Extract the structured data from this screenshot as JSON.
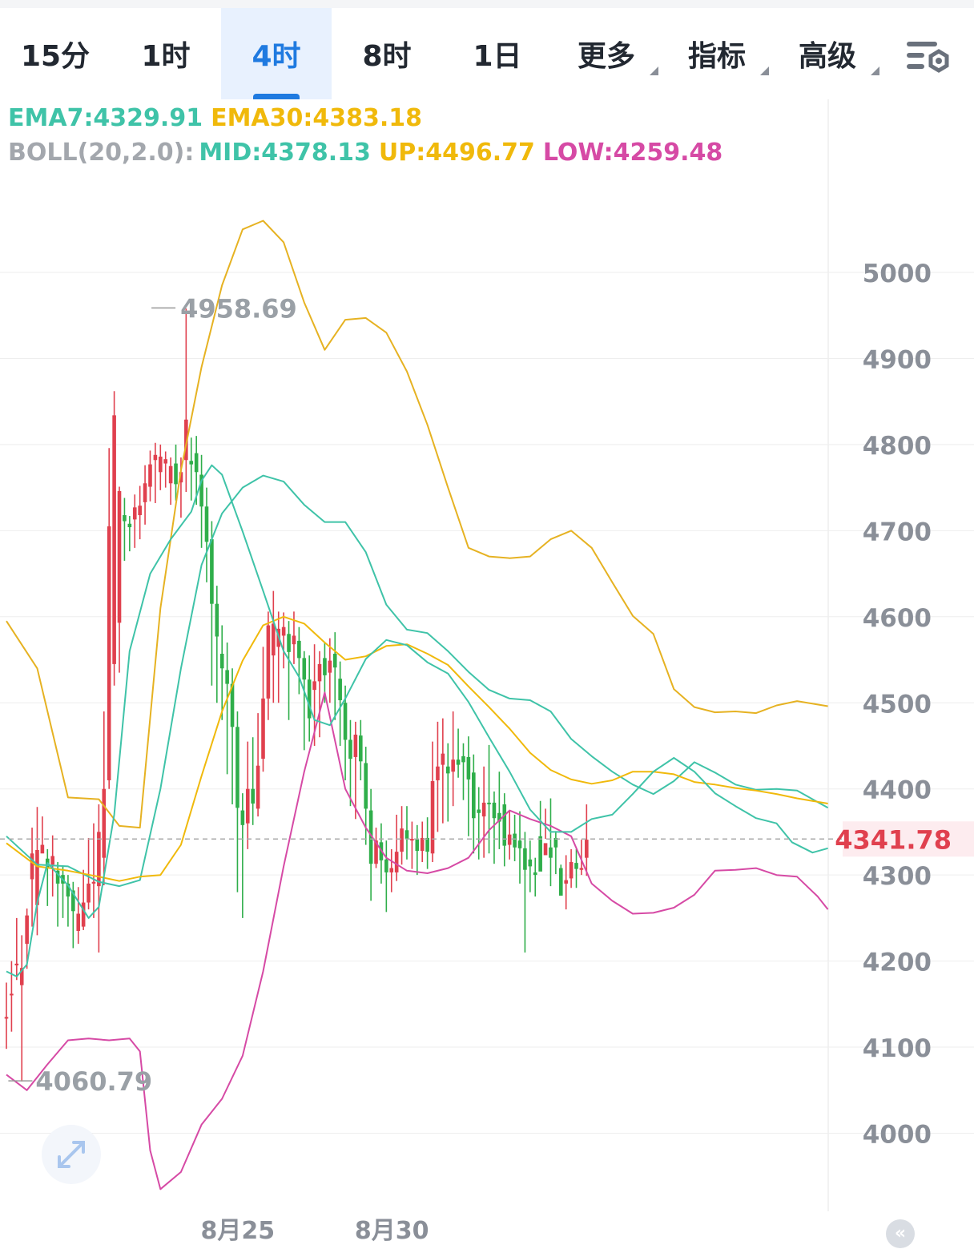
{
  "tabs": [
    {
      "label": "15分",
      "active": false
    },
    {
      "label": "1时",
      "active": false
    },
    {
      "label": "4时",
      "active": true
    },
    {
      "label": "8时",
      "active": false
    },
    {
      "label": "1日",
      "active": false
    },
    {
      "label": "更多",
      "active": false,
      "dropdown": true
    },
    {
      "label": "指标",
      "active": false,
      "dropdown": true
    },
    {
      "label": "高级",
      "active": false,
      "dropdown": true
    }
  ],
  "icons": {
    "settings": "settings-sliders-icon",
    "expand": "expand-diagonal-icon",
    "back": "back-to-latest-icon"
  },
  "legend": {
    "ema7": "EMA7:4329.91",
    "ema30": "EMA30:4383.18",
    "boll": "BOLL(20,2.0):",
    "mid": "MID:4378.13",
    "up": "UP:4496.77",
    "low": "LOW:4259.48"
  },
  "colors": {
    "up_candle": "#e0404e",
    "down_candle": "#2fae4a",
    "ema7": "#3fc3a8",
    "ema30": "#f0b90b",
    "boll_up": "#e6b222",
    "boll_low": "#d64aa5",
    "boll_mid": "#3fc3a8",
    "price_tag": "#e0404e",
    "axis_text": "#8a8f98",
    "grid": "#eeeeee"
  },
  "chart_data": {
    "type": "candlestick",
    "interval": "4时",
    "y_axis": {
      "ticks": [
        4000,
        4100,
        4200,
        4300,
        4400,
        4500,
        4600,
        4700,
        4800,
        4900,
        5000
      ],
      "range": [
        3930,
        5100
      ]
    },
    "x_axis": {
      "labels": [
        {
          "text": "8月25",
          "index": 46
        },
        {
          "text": "8月30",
          "index": 76
        }
      ]
    },
    "current_price": "4341.78",
    "marked_high": {
      "label": "4958.69",
      "index": 27
    },
    "marked_low": {
      "label": "4060.79",
      "index": 1
    },
    "candles": [
      [
        4135,
        4135,
        4175,
        4098
      ],
      [
        4162,
        4162,
        4200,
        4118
      ],
      [
        4195,
        4197,
        4250,
        4178
      ],
      [
        4172,
        4192,
        4230,
        4060
      ],
      [
        4220,
        4253,
        4261,
        4191
      ],
      [
        4295,
        4325,
        4355,
        4240
      ],
      [
        4265,
        4329,
        4379,
        4230
      ],
      [
        4325,
        4335,
        4368,
        4328
      ],
      [
        4319,
        4308,
        4330,
        4264
      ],
      [
        4312,
        4322,
        4346,
        4275
      ],
      [
        4305,
        4290,
        4315,
        4240
      ],
      [
        4300,
        4290,
        4310,
        4250
      ],
      [
        4290,
        4275,
        4300,
        4240
      ],
      [
        4282,
        4258,
        4292,
        4215
      ],
      [
        4235,
        4255,
        4286,
        4220
      ],
      [
        4240,
        4268,
        4306,
        4236
      ],
      [
        4268,
        4290,
        4343,
        4260
      ],
      [
        4290,
        4292,
        4360,
        4250
      ],
      [
        4287,
        4350,
        4382,
        4210
      ],
      [
        4320,
        4400,
        4490,
        4288
      ],
      [
        4410,
        4705,
        4796,
        4400
      ],
      [
        4545,
        4834,
        4862,
        4520
      ],
      [
        4593,
        4746,
        4751,
        4535
      ],
      [
        4718,
        4711,
        4738,
        4665
      ],
      [
        4708,
        4704,
        4717,
        4676
      ],
      [
        4713,
        4727,
        4742,
        4680
      ],
      [
        4718,
        4729,
        4752,
        4690
      ],
      [
        4733,
        4755,
        4776,
        4707
      ],
      [
        4751,
        4777,
        4793,
        4734
      ],
      [
        4782,
        4788,
        4802,
        4732
      ],
      [
        4768,
        4786,
        4800,
        4747
      ],
      [
        4778,
        4783,
        4792,
        4750
      ],
      [
        4755,
        4775,
        4785,
        4730
      ],
      [
        4778,
        4754,
        4800,
        4735
      ],
      [
        4756,
        4768,
        4785,
        4715
      ],
      [
        4782,
        4829,
        4958,
        4745
      ],
      [
        4781,
        4777,
        4808,
        4735
      ],
      [
        4790,
        4768,
        4810,
        4730
      ],
      [
        4765,
        4728,
        4788,
        4680
      ],
      [
        4728,
        4687,
        4750,
        4640
      ],
      [
        4690,
        4615,
        4711,
        4520
      ],
      [
        4615,
        4577,
        4636,
        4500
      ],
      [
        4557,
        4540,
        4590,
        4480
      ],
      [
        4538,
        4522,
        4570,
        4417
      ],
      [
        4522,
        4472,
        4540,
        4382
      ],
      [
        4472,
        4378,
        4490,
        4280
      ],
      [
        4375,
        4358,
        4395,
        4250
      ],
      [
        4360,
        4400,
        4455,
        4330
      ],
      [
        4400,
        4383,
        4460,
        4358
      ],
      [
        4377,
        4427,
        4488,
        4368
      ],
      [
        4435,
        4505,
        4565,
        4420
      ],
      [
        4505,
        4590,
        4606,
        4480
      ],
      [
        4555,
        4592,
        4630,
        4500
      ],
      [
        4565,
        4586,
        4606,
        4500
      ],
      [
        4578,
        4588,
        4605,
        4540
      ],
      [
        4580,
        4559,
        4595,
        4480
      ],
      [
        4568,
        4578,
        4606,
        4545
      ],
      [
        4572,
        4552,
        4588,
        4510
      ],
      [
        4552,
        4527,
        4560,
        4445
      ],
      [
        4527,
        4482,
        4555,
        4455
      ],
      [
        4515,
        4525,
        4568,
        4450
      ],
      [
        4525,
        4545,
        4560,
        4460
      ],
      [
        4552,
        4532,
        4570,
        4500
      ],
      [
        4535,
        4549,
        4575,
        4500
      ],
      [
        4557,
        4541,
        4582,
        4480
      ],
      [
        4528,
        4503,
        4548,
        4450
      ],
      [
        4500,
        4457,
        4520,
        4410
      ],
      [
        4457,
        4435,
        4480,
        4380
      ],
      [
        4437,
        4463,
        4478,
        4365
      ],
      [
        4462,
        4432,
        4480,
        4410
      ],
      [
        4430,
        4377,
        4449,
        4335
      ],
      [
        4375,
        4313,
        4400,
        4270
      ],
      [
        4313,
        4340,
        4355,
        4308
      ],
      [
        4338,
        4317,
        4360,
        4290
      ],
      [
        4318,
        4303,
        4340,
        4257
      ],
      [
        4303,
        4308,
        4330,
        4280
      ],
      [
        4303,
        4327,
        4370,
        4293
      ],
      [
        4327,
        4354,
        4380,
        4312
      ],
      [
        4352,
        4342,
        4380,
        4318
      ],
      [
        4340,
        4342,
        4362,
        4307
      ],
      [
        4342,
        4328,
        4358,
        4300
      ],
      [
        4328,
        4343,
        4362,
        4315
      ],
      [
        4343,
        4327,
        4367,
        4307
      ],
      [
        4325,
        4409,
        4455,
        4315
      ],
      [
        4410,
        4426,
        4478,
        4350
      ],
      [
        4428,
        4441,
        4482,
        4360
      ],
      [
        4426,
        4418,
        4453,
        4362
      ],
      [
        4420,
        4434,
        4490,
        4380
      ],
      [
        4434,
        4428,
        4470,
        4413
      ],
      [
        4438,
        4431,
        4453,
        4387
      ],
      [
        4437,
        4411,
        4461,
        4345
      ],
      [
        4419,
        4366,
        4440,
        4325
      ],
      [
        4376,
        4372,
        4402,
        4318
      ],
      [
        4368,
        4384,
        4426,
        4320
      ],
      [
        4384,
        4383,
        4451,
        4325
      ],
      [
        4384,
        4366,
        4397,
        4313
      ],
      [
        4372,
        4362,
        4420,
        4330
      ],
      [
        4382,
        4334,
        4395,
        4310
      ],
      [
        4335,
        4347,
        4375,
        4318
      ],
      [
        4348,
        4332,
        4370,
        4316
      ],
      [
        4340,
        4331,
        4374,
        4290
      ],
      [
        4331,
        4306,
        4350,
        4210
      ],
      [
        4318,
        4310,
        4340,
        4280
      ],
      [
        4303,
        4300,
        4320,
        4275
      ],
      [
        4345,
        4304,
        4386,
        4325
      ],
      [
        4323,
        4337,
        4377,
        4342
      ],
      [
        4332,
        4320,
        4389,
        4287
      ],
      [
        4343,
        4332,
        4351,
        4301
      ],
      [
        4308,
        4276,
        4312,
        4279
      ],
      [
        4290,
        4294,
        4323,
        4260
      ],
      [
        4296,
        4315,
        4330,
        4285
      ],
      [
        4314,
        4307,
        4330,
        4285
      ],
      [
        4306,
        4308,
        4341,
        4300
      ],
      [
        4320,
        4341,
        4382,
        4299
      ]
    ],
    "ema7": [
      [
        0,
        4188
      ],
      [
        2,
        4182
      ],
      [
        4,
        4196
      ],
      [
        6,
        4268
      ],
      [
        8,
        4314
      ],
      [
        12,
        4288
      ],
      [
        16,
        4250
      ],
      [
        18,
        4263
      ],
      [
        21,
        4370
      ],
      [
        24,
        4560
      ],
      [
        28,
        4650
      ],
      [
        32,
        4690
      ],
      [
        36,
        4722
      ],
      [
        38,
        4758
      ],
      [
        40,
        4776
      ],
      [
        42,
        4765
      ],
      [
        46,
        4699
      ],
      [
        50,
        4630
      ],
      [
        54,
        4560
      ],
      [
        57,
        4530
      ],
      [
        60,
        4480
      ],
      [
        63,
        4474
      ],
      [
        66,
        4505
      ],
      [
        70,
        4551
      ],
      [
        74,
        4573
      ],
      [
        78,
        4567
      ],
      [
        82,
        4547
      ],
      [
        86,
        4534
      ],
      [
        90,
        4501
      ],
      [
        94,
        4460
      ],
      [
        98,
        4420
      ],
      [
        102,
        4376
      ],
      [
        106,
        4350
      ],
      [
        110,
        4350
      ],
      [
        114,
        4365
      ],
      [
        118,
        4370
      ],
      [
        122,
        4394
      ],
      [
        126,
        4420
      ],
      [
        130,
        4436
      ],
      [
        134,
        4420
      ],
      [
        138,
        4395
      ],
      [
        142,
        4380
      ],
      [
        146,
        4366
      ],
      [
        150,
        4360
      ],
      [
        153,
        4338
      ],
      [
        157,
        4326
      ],
      [
        160,
        4331
      ]
    ],
    "ema30": [
      [
        0,
        4337
      ],
      [
        6,
        4310
      ],
      [
        12,
        4305
      ],
      [
        18,
        4298
      ],
      [
        22,
        4293
      ],
      [
        26,
        4298
      ],
      [
        30,
        4300
      ],
      [
        34,
        4335
      ],
      [
        38,
        4415
      ],
      [
        42,
        4490
      ],
      [
        46,
        4549
      ],
      [
        50,
        4590
      ],
      [
        54,
        4600
      ],
      [
        58,
        4592
      ],
      [
        62,
        4570
      ],
      [
        66,
        4550
      ],
      [
        70,
        4554
      ],
      [
        74,
        4566
      ],
      [
        78,
        4568
      ],
      [
        82,
        4557
      ],
      [
        86,
        4544
      ],
      [
        90,
        4519
      ],
      [
        94,
        4495
      ],
      [
        98,
        4470
      ],
      [
        102,
        4442
      ],
      [
        106,
        4422
      ],
      [
        110,
        4411
      ],
      [
        114,
        4406
      ],
      [
        118,
        4410
      ],
      [
        122,
        4420
      ],
      [
        126,
        4420
      ],
      [
        130,
        4417
      ],
      [
        134,
        4408
      ],
      [
        138,
        4405
      ],
      [
        142,
        4401
      ],
      [
        146,
        4398
      ],
      [
        150,
        4394
      ],
      [
        154,
        4389
      ],
      [
        160,
        4383
      ]
    ],
    "boll_up": [
      [
        0,
        4595
      ],
      [
        6,
        4540
      ],
      [
        12,
        4390
      ],
      [
        18,
        4388
      ],
      [
        22,
        4357
      ],
      [
        26,
        4355
      ],
      [
        30,
        4610
      ],
      [
        34,
        4770
      ],
      [
        38,
        4890
      ],
      [
        42,
        4985
      ],
      [
        46,
        5050
      ],
      [
        50,
        5060
      ],
      [
        54,
        5035
      ],
      [
        58,
        4965
      ],
      [
        62,
        4910
      ],
      [
        66,
        4945
      ],
      [
        70,
        4947
      ],
      [
        74,
        4930
      ],
      [
        78,
        4885
      ],
      [
        82,
        4823
      ],
      [
        86,
        4750
      ],
      [
        90,
        4680
      ],
      [
        94,
        4670
      ],
      [
        98,
        4668
      ],
      [
        102,
        4670
      ],
      [
        106,
        4690
      ],
      [
        110,
        4700
      ],
      [
        114,
        4680
      ],
      [
        118,
        4640
      ],
      [
        122,
        4601
      ],
      [
        126,
        4580
      ],
      [
        130,
        4516
      ],
      [
        134,
        4495
      ],
      [
        138,
        4489
      ],
      [
        142,
        4490
      ],
      [
        146,
        4488
      ],
      [
        150,
        4497
      ],
      [
        154,
        4502
      ],
      [
        160,
        4496
      ]
    ],
    "boll_mid": [
      [
        0,
        4345
      ],
      [
        6,
        4312
      ],
      [
        12,
        4310
      ],
      [
        18,
        4292
      ],
      [
        22,
        4287
      ],
      [
        26,
        4294
      ],
      [
        30,
        4400
      ],
      [
        34,
        4540
      ],
      [
        38,
        4660
      ],
      [
        42,
        4720
      ],
      [
        46,
        4750
      ],
      [
        50,
        4764
      ],
      [
        54,
        4757
      ],
      [
        58,
        4730
      ],
      [
        62,
        4710
      ],
      [
        66,
        4710
      ],
      [
        70,
        4675
      ],
      [
        74,
        4614
      ],
      [
        78,
        4585
      ],
      [
        82,
        4581
      ],
      [
        86,
        4560
      ],
      [
        90,
        4536
      ],
      [
        94,
        4515
      ],
      [
        98,
        4505
      ],
      [
        102,
        4503
      ],
      [
        106,
        4490
      ],
      [
        110,
        4458
      ],
      [
        114,
        4438
      ],
      [
        118,
        4420
      ],
      [
        122,
        4405
      ],
      [
        126,
        4394
      ],
      [
        130,
        4409
      ],
      [
        134,
        4431
      ],
      [
        138,
        4419
      ],
      [
        142,
        4405
      ],
      [
        146,
        4399
      ],
      [
        150,
        4400
      ],
      [
        154,
        4398
      ],
      [
        160,
        4378
      ]
    ],
    "boll_low": [
      [
        0,
        4068
      ],
      [
        4,
        4050
      ],
      [
        8,
        4080
      ],
      [
        12,
        4108
      ],
      [
        16,
        4110
      ],
      [
        20,
        4108
      ],
      [
        24,
        4110
      ],
      [
        26,
        4095
      ],
      [
        28,
        3980
      ],
      [
        30,
        3935
      ],
      [
        34,
        3955
      ],
      [
        38,
        4010
      ],
      [
        42,
        4040
      ],
      [
        46,
        4090
      ],
      [
        50,
        4188
      ],
      [
        54,
        4310
      ],
      [
        58,
        4420
      ],
      [
        62,
        4512
      ],
      [
        66,
        4400
      ],
      [
        70,
        4355
      ],
      [
        74,
        4320
      ],
      [
        78,
        4305
      ],
      [
        82,
        4302
      ],
      [
        86,
        4308
      ],
      [
        90,
        4320
      ],
      [
        94,
        4352
      ],
      [
        98,
        4375
      ],
      [
        102,
        4365
      ],
      [
        106,
        4357
      ],
      [
        110,
        4345
      ],
      [
        114,
        4290
      ],
      [
        118,
        4270
      ],
      [
        122,
        4255
      ],
      [
        126,
        4256
      ],
      [
        130,
        4262
      ],
      [
        134,
        4277
      ],
      [
        138,
        4305
      ],
      [
        142,
        4306
      ],
      [
        146,
        4308
      ],
      [
        150,
        4300
      ],
      [
        154,
        4298
      ],
      [
        158,
        4275
      ],
      [
        160,
        4260
      ]
    ]
  }
}
